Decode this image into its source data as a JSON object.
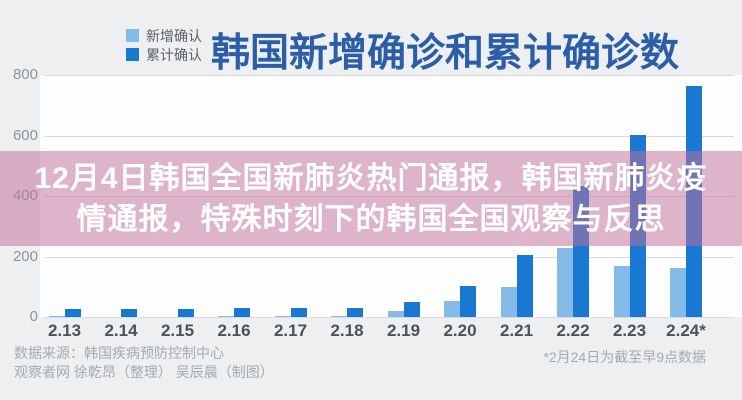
{
  "page": {
    "background": "#edeff1",
    "plot_background": "#fdfdfe"
  },
  "legend": {
    "items": [
      {
        "label": "新增确认",
        "color": "#85bbe9"
      },
      {
        "label": "累计确认",
        "color": "#1878d2"
      }
    ]
  },
  "chart_data": {
    "type": "bar",
    "title": "韩国新增确诊和累计确诊数",
    "title_color": "#2b5ea7",
    "categories": [
      "2.13",
      "2.14",
      "2.15",
      "2.16",
      "2.17",
      "2.18",
      "2.19",
      "2.20",
      "2.21",
      "2.22",
      "2.23",
      "2.24*"
    ],
    "series": [
      {
        "name": "新增确认",
        "color": "#85bbe9",
        "values": [
          1,
          0,
          0,
          1,
          1,
          1,
          20,
          53,
          100,
          229,
          169,
          161
        ]
      },
      {
        "name": "累计确认",
        "color": "#1878d2",
        "values": [
          28,
          28,
          28,
          29,
          30,
          31,
          51,
          104,
          204,
          433,
          602,
          763
        ]
      }
    ],
    "ylim": [
      0,
      800
    ],
    "yticks": [
      0,
      200,
      400,
      600,
      800
    ],
    "grid": true,
    "legend_position": "top-left",
    "footnote": "*2月24日为截至早9点数据"
  },
  "overlay": {
    "line1": "12月4日韩国全国新肺炎热门通报，韩国新肺炎疫",
    "line2": "情通报，特殊时刻下的韩国全国观察与反思",
    "text_color": "#ffffff",
    "band_color": "rgba(193,113,155,0.52)"
  },
  "footer": {
    "source": "数据来源：韩国疾病预防控制中心",
    "credits": "观察者网 徐乾昂（整理） 吴辰晨（制图）"
  }
}
